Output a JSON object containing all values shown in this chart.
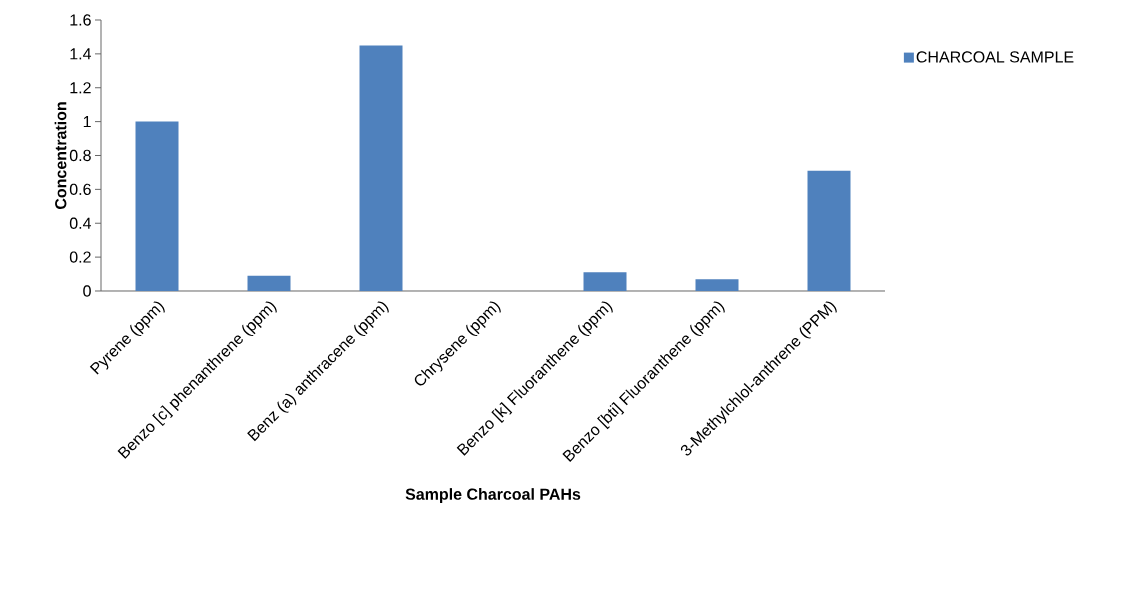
{
  "chart_data": {
    "type": "bar",
    "xlabel": "Sample Charcoal PAHs",
    "ylabel": "Concentration",
    "categories": [
      "Pyrene (ppm)",
      "Benzo [c] phenanthrene (ppm)",
      "Benz (a) anthracene (ppm)",
      "Chrysene (ppm)",
      "Benzo [k] Fluoranthene (ppm)",
      "Benzo [bti] Fluoranthene (ppm)",
      "3-Methylchlol-anthrene (PPM)"
    ],
    "series": [
      {
        "name": "CHARCOAL SAMPLE",
        "color": "#4f81bd",
        "values": [
          1.0,
          0.09,
          1.45,
          0,
          0.11,
          0.07,
          0.71
        ]
      }
    ],
    "ylim": [
      0,
      1.6
    ],
    "yticks": [
      0,
      0.2,
      0.4,
      0.6,
      0.8,
      1,
      1.2,
      1.4,
      1.6
    ],
    "legend": "right"
  }
}
